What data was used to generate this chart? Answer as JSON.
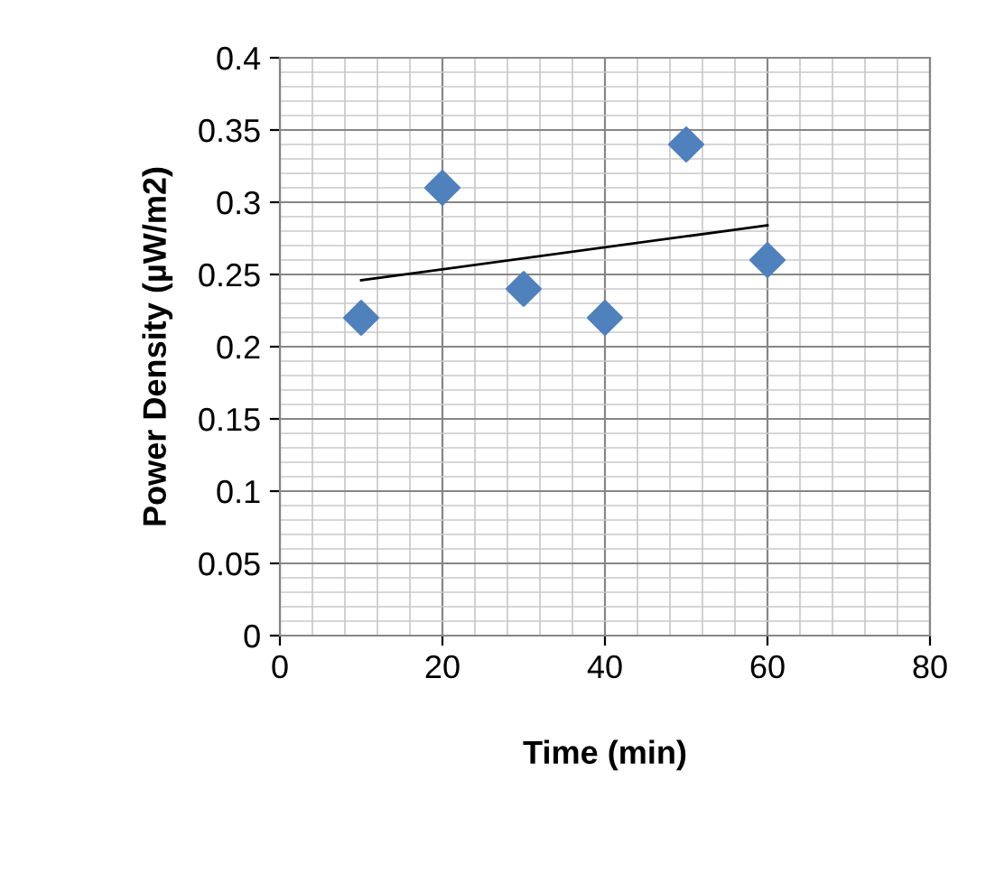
{
  "chart_data": {
    "type": "scatter",
    "xlabel": "Time (min)",
    "ylabel": "Power Density (µW/m2)",
    "xlim": [
      0,
      80
    ],
    "xticks": [
      0,
      20,
      40,
      60,
      80
    ],
    "ylim": [
      0,
      0.4
    ],
    "yticks": [
      0,
      0.05,
      0.1,
      0.15,
      0.2,
      0.25,
      0.3,
      0.35,
      0.4
    ],
    "grid": true,
    "marker": "diamond",
    "legend": false,
    "series": [
      {
        "color": "#4f81bd",
        "x": [
          10,
          20,
          30,
          40,
          50,
          60
        ],
        "values": [
          0.22,
          0.31,
          0.24,
          0.22,
          0.34,
          0.26
        ]
      },
      {
        "type": "line",
        "color": "#000000",
        "line_style": "solid",
        "marker": "none",
        "x": [
          10,
          60
        ],
        "values": [
          0.246,
          0.284
        ]
      }
    ]
  }
}
